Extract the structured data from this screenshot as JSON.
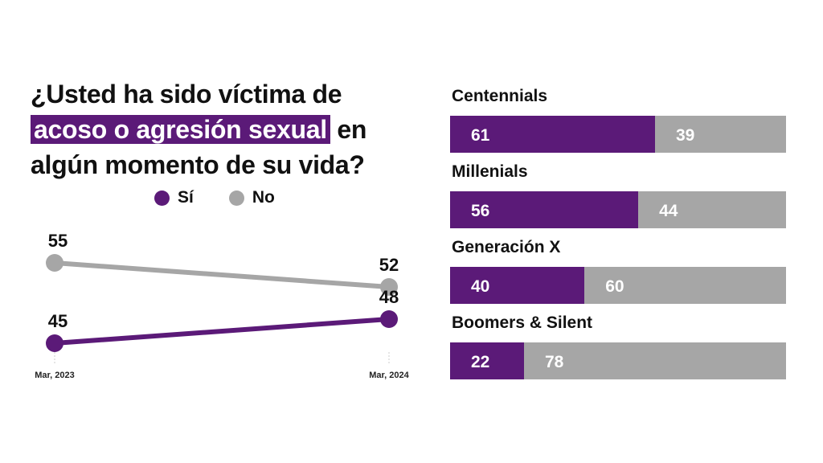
{
  "title": {
    "before": "¿Usted ha sido víctima de ",
    "highlight": "acoso o agresión sexual",
    "after": " en algún momento de su vida?"
  },
  "legend": [
    {
      "label": "Sí",
      "color": "#5b1a78"
    },
    {
      "label": "No",
      "color": "#a6a6a6"
    }
  ],
  "colors": {
    "si": "#5b1a78",
    "no": "#a6a6a6"
  },
  "chart_data": [
    {
      "type": "line",
      "x": [
        "Mar, 2023",
        "Mar, 2024"
      ],
      "series": [
        {
          "name": "Sí",
          "values": [
            45,
            48
          ],
          "color": "#5b1a78"
        },
        {
          "name": "No",
          "values": [
            55,
            52
          ],
          "color": "#a6a6a6"
        }
      ]
    },
    {
      "type": "bar",
      "stacked": true,
      "orientation": "horizontal",
      "categories": [
        "Centennials",
        "Millenials",
        "Generación X",
        "Boomers & Silent"
      ],
      "series": [
        {
          "name": "Sí",
          "values": [
            61,
            56,
            40,
            22
          ],
          "color": "#5b1a78"
        },
        {
          "name": "No",
          "values": [
            39,
            44,
            60,
            78
          ],
          "color": "#a6a6a6"
        }
      ]
    }
  ]
}
